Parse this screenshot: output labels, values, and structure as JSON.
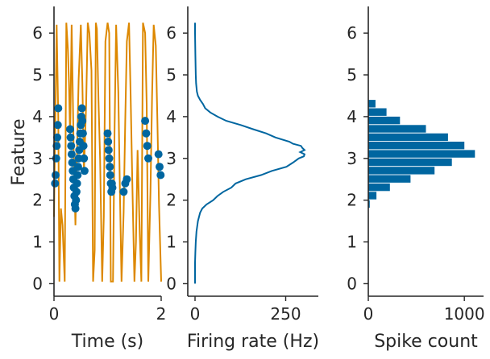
{
  "chart_data": [
    {
      "type": "line",
      "subtype": "trajectory-with-spike-scatter",
      "xlabel": "Time (s)",
      "ylabel": "Feature",
      "xlim": [
        0,
        2
      ],
      "ylim": [
        -0.3,
        6.6
      ],
      "xticks": [
        0,
        2
      ],
      "yticks": [
        0,
        1,
        2,
        3,
        4,
        5,
        6
      ],
      "grid": false,
      "colors": {
        "line": "#dd8800",
        "points": "#0066a0"
      },
      "trajectory": {
        "name": "",
        "x": [
          0.0,
          0.02,
          0.05,
          0.08,
          0.1,
          0.13,
          0.16,
          0.2,
          0.23,
          0.26,
          0.28,
          0.3,
          0.33,
          0.37,
          0.4,
          0.43,
          0.46,
          0.5,
          0.53,
          0.56,
          0.6,
          0.63,
          0.66,
          0.7,
          0.73,
          0.76,
          0.78,
          0.8,
          0.83,
          0.86,
          0.9,
          0.93,
          0.96,
          1.0,
          1.03,
          1.06,
          1.1,
          1.13,
          1.16,
          1.2,
          1.23,
          1.26,
          1.3,
          1.33,
          1.36,
          1.4,
          1.43,
          1.46,
          1.5,
          1.53,
          1.56,
          1.6,
          1.63,
          1.66,
          1.7,
          1.73,
          1.76,
          1.8,
          1.83,
          1.86,
          1.9,
          1.93,
          1.96,
          2.0
        ],
        "y": [
          1.6,
          3.4,
          6.2,
          4.0,
          0.05,
          1.8,
          1.4,
          0.05,
          6.25,
          5.6,
          4.8,
          3.5,
          6.2,
          3.0,
          1.4,
          3.2,
          4.9,
          6.2,
          4.8,
          2.7,
          4.3,
          6.25,
          6.0,
          5.1,
          0.05,
          0.8,
          6.25,
          6.1,
          4.4,
          3.0,
          0.05,
          1.6,
          5.8,
          6.25,
          6.0,
          0.05,
          0.05,
          3.6,
          6.2,
          4.6,
          2.2,
          0.05,
          1.7,
          3.9,
          5.8,
          6.25,
          4.5,
          2.5,
          0.05,
          1.0,
          3.2,
          1.2,
          0.05,
          6.25,
          6.0,
          4.3,
          0.05,
          2.2,
          4.5,
          6.2,
          5.7,
          3.9,
          1.9,
          0.05
        ]
      },
      "spikes": {
        "x": [
          0.02,
          0.03,
          0.04,
          0.05,
          0.06,
          0.07,
          0.08,
          0.3,
          0.31,
          0.32,
          0.33,
          0.34,
          0.35,
          0.36,
          0.37,
          0.38,
          0.39,
          0.4,
          0.41,
          0.42,
          0.43,
          0.44,
          0.45,
          0.46,
          0.47,
          0.48,
          0.49,
          0.5,
          0.51,
          0.52,
          0.53,
          0.54,
          0.55,
          0.56,
          0.57,
          1.0,
          1.01,
          1.02,
          1.03,
          1.04,
          1.05,
          1.06,
          1.07,
          1.08,
          1.09,
          1.3,
          1.33,
          1.36,
          1.7,
          1.72,
          1.74,
          1.76,
          1.95,
          1.97,
          1.99
        ],
        "y": [
          2.4,
          2.6,
          3.0,
          3.3,
          3.5,
          3.8,
          4.2,
          3.7,
          3.5,
          3.3,
          3.1,
          2.9,
          2.7,
          2.5,
          2.3,
          2.1,
          1.9,
          1.8,
          2.0,
          2.2,
          2.4,
          2.6,
          2.8,
          3.0,
          3.2,
          3.4,
          3.6,
          3.8,
          4.0,
          4.2,
          3.9,
          3.6,
          3.3,
          3.0,
          2.7,
          3.6,
          3.4,
          3.2,
          3.0,
          2.8,
          2.6,
          2.4,
          2.2,
          2.4,
          2.3,
          2.2,
          2.4,
          2.5,
          3.9,
          3.6,
          3.3,
          3.0,
          3.1,
          2.8,
          2.6
        ]
      }
    },
    {
      "type": "line",
      "subtype": "tuning-curve",
      "xlabel": "Firing rate (Hz)",
      "ylabel": "",
      "xlim": [
        -20,
        340
      ],
      "ylim": [
        -0.3,
        6.6
      ],
      "xticks": [
        0,
        250
      ],
      "yticks": [
        0,
        1,
        2,
        3,
        4,
        5,
        6
      ],
      "grid": false,
      "colors": {
        "line": "#0066a0"
      },
      "series": [
        {
          "name": "",
          "y": [
            0.0,
            0.25,
            0.5,
            0.75,
            1.0,
            1.25,
            1.5,
            1.7,
            1.8,
            1.9,
            2.0,
            2.1,
            2.2,
            2.3,
            2.4,
            2.5,
            2.6,
            2.7,
            2.8,
            2.9,
            3.0,
            3.05,
            3.1,
            3.15,
            3.2,
            3.25,
            3.3,
            3.35,
            3.4,
            3.5,
            3.6,
            3.7,
            3.8,
            3.9,
            4.0,
            4.1,
            4.2,
            4.3,
            4.4,
            4.5,
            4.6,
            4.8,
            5.0,
            5.5,
            6.0,
            6.25
          ],
          "x": [
            0,
            0,
            0,
            1,
            2,
            4,
            8,
            14,
            20,
            32,
            50,
            62,
            78,
            100,
            112,
            140,
            182,
            212,
            252,
            270,
            286,
            300,
            302,
            290,
            302,
            296,
            292,
            270,
            260,
            222,
            196,
            160,
            126,
            86,
            62,
            42,
            28,
            22,
            14,
            8,
            5,
            3,
            2,
            1,
            0,
            0
          ]
        }
      ]
    },
    {
      "type": "bar",
      "orientation": "horizontal",
      "subtype": "histogram",
      "xlabel": "Spike count",
      "ylabel": "",
      "xlim": [
        0,
        1200
      ],
      "ylim": [
        -0.3,
        6.6
      ],
      "xticks": [
        0,
        1000
      ],
      "yticks": [
        0,
        1,
        2,
        3,
        4,
        5,
        6
      ],
      "grid": false,
      "bin_width": 0.2,
      "colors": {
        "bars": "#0066a0"
      },
      "bins": [
        1.8,
        2.0,
        2.2,
        2.4,
        2.6,
        2.8,
        3.0,
        3.2,
        3.4,
        3.6,
        3.8,
        4.0,
        4.2
      ],
      "counts": [
        15,
        85,
        225,
        440,
        690,
        870,
        1110,
        1000,
        830,
        600,
        330,
        190,
        75
      ]
    }
  ]
}
